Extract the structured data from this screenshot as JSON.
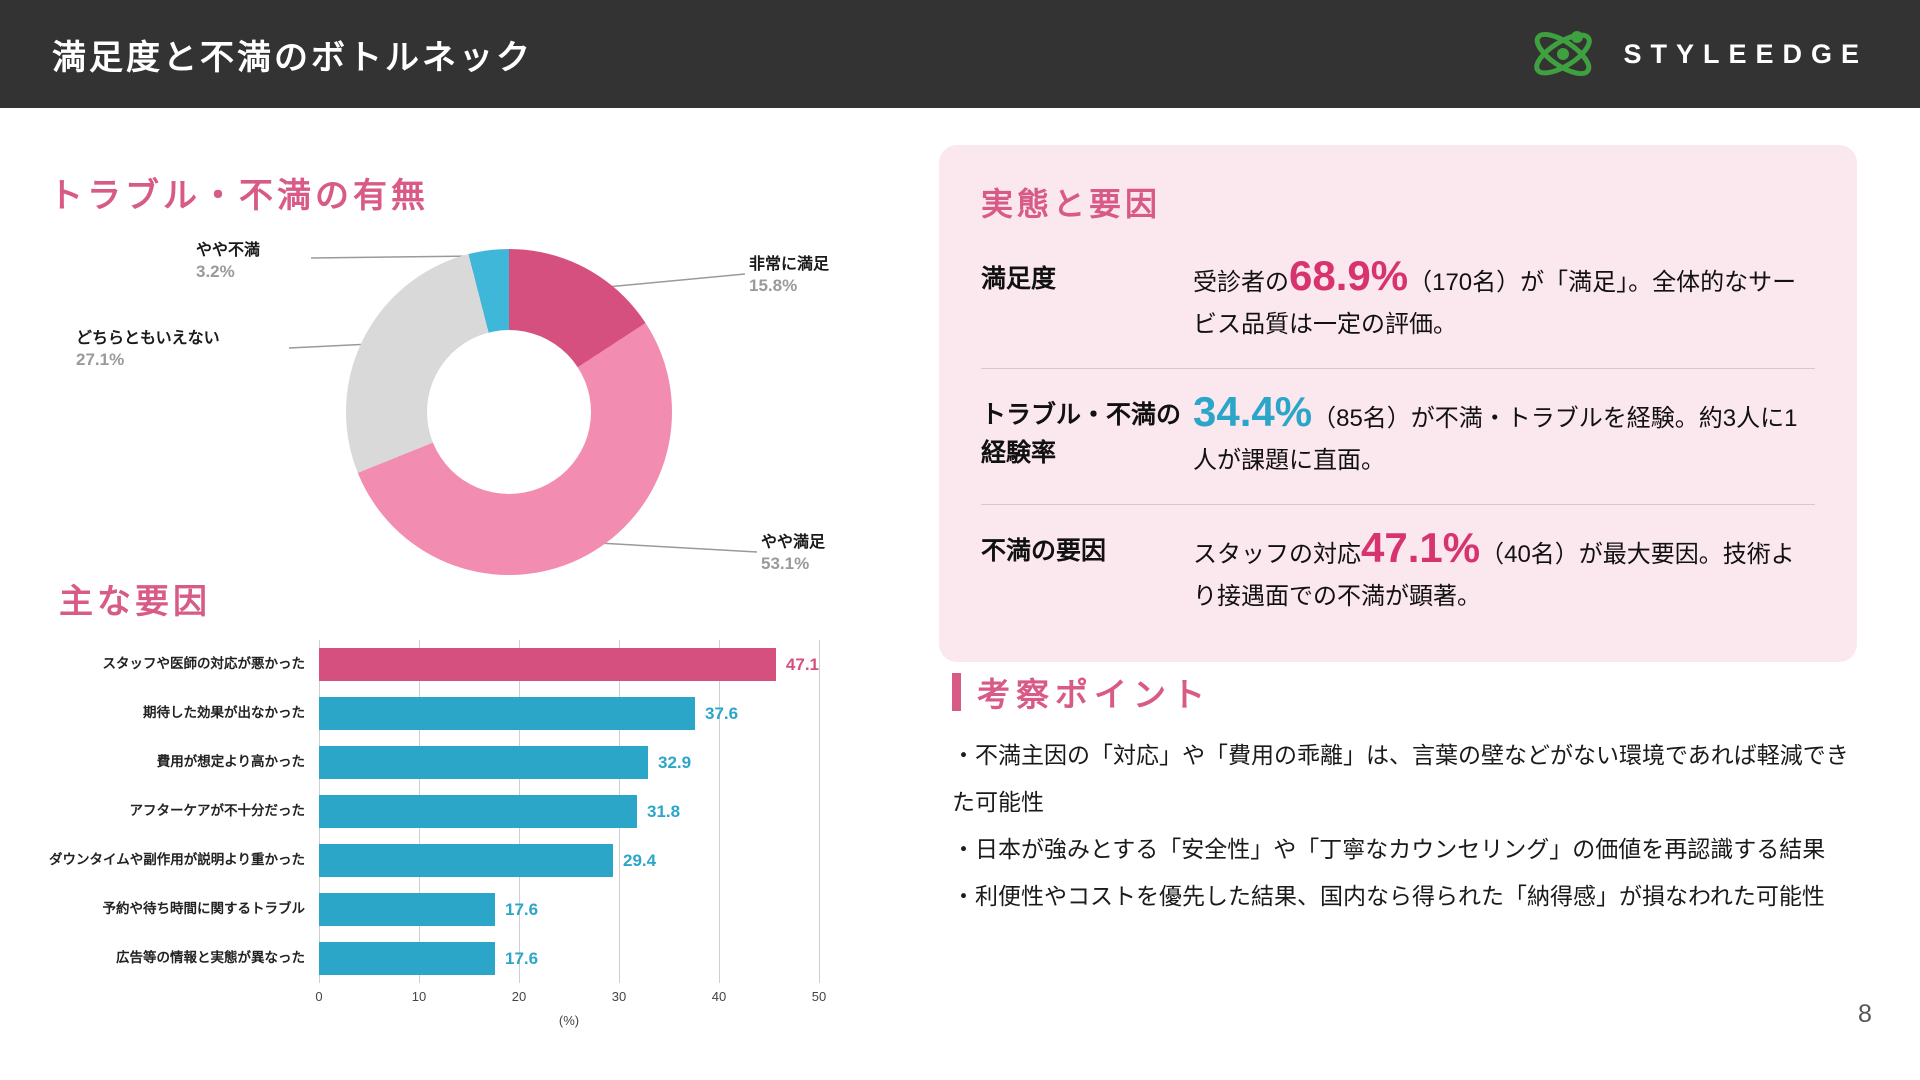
{
  "header": {
    "title": "満足度と不満のボトルネック",
    "brand": "STYLEEDGE"
  },
  "sections": {
    "donut_heading": "トラブル・不満の有無",
    "bar_heading": "主な要因",
    "facts_heading": "実態と要因",
    "insights_heading": "考察ポイント"
  },
  "colors": {
    "accent_pink": "#d85a87",
    "big_pink": "#d6336f",
    "cyan": "#2ba6c9",
    "dark_pink_segment": "#d6507f",
    "light_pink_segment": "#f28cb1",
    "gray_segment": "#d9d9d9",
    "cyan_segment": "#3fb7d9",
    "header_bg": "#333333",
    "panel_bg": "#fbe7ee",
    "logo_green": "#3fa03f"
  },
  "chart_data": [
    {
      "type": "pie",
      "donut": true,
      "title": "トラブル・不満の有無",
      "labels": [
        "非常に満足",
        "やや満足",
        "どちらともいえない",
        "やや不満"
      ],
      "values": [
        15.8,
        53.1,
        27.1,
        3.2
      ],
      "display_values": [
        "15.8%",
        "53.1%",
        "27.1%",
        "3.2%"
      ],
      "colors": [
        "#d6507f",
        "#f28cb1",
        "#d9d9d9",
        "#3fb7d9"
      ],
      "legend_position": "none"
    },
    {
      "type": "bar",
      "orientation": "horizontal",
      "title": "主な要因",
      "categories": [
        "スタッフや医師の対応が悪かった",
        "期待した効果が出なかった",
        "費用が想定より高かった",
        "アフターケアが不十分だった",
        "ダウンタイムや副作用が説明より重かった",
        "予約や待ち時間に関するトラブル",
        "広告等の情報と実態が異なった"
      ],
      "values": [
        47.1,
        37.6,
        32.9,
        31.8,
        29.4,
        17.6,
        17.6
      ],
      "value_labels": [
        "47.1",
        "37.6",
        "32.9",
        "31.8",
        "29.4",
        "17.6",
        "17.6"
      ],
      "colors": [
        "#d6507f",
        "#2ba6c9",
        "#2ba6c9",
        "#2ba6c9",
        "#2ba6c9",
        "#2ba6c9",
        "#2ba6c9"
      ],
      "xlim": [
        0,
        50
      ],
      "xticks": [
        0,
        10,
        20,
        30,
        40,
        50
      ],
      "xlabel": "(%)",
      "grid": true
    }
  ],
  "facts": {
    "heading": "実態と要因",
    "rows": [
      {
        "label": "満足度",
        "pre": "受診者の",
        "big": "68.9%",
        "big_color": "#d6336f",
        "post": "（170名）が「満足」。全体的なサービス品質は一定の評価。"
      },
      {
        "label": "トラブル・不満の経験率",
        "pre": "",
        "big": "34.4%",
        "big_color": "#2ba6c9",
        "post": "（85名）が不満・トラブルを経験。約3人に1人が課題に直面。"
      },
      {
        "label": "不満の要因",
        "pre": "スタッフの対応",
        "big": "47.1%",
        "big_color": "#d6336f",
        "post": "（40名）が最大要因。技術より接遇面での不満が顕著。"
      }
    ]
  },
  "insights": {
    "heading": "考察ポイント",
    "bullets": [
      "・不満主因の「対応」や「費用の乖離」は、言葉の壁などがない環境であれば軽減できた可能性",
      "・日本が強みとする「安全性」や「丁寧なカウンセリング」の価値を再認識する結果",
      "・利便性やコストを優先した結果、国内なら得られた「納得感」が損なわれた可能性"
    ]
  },
  "page_number": "8"
}
